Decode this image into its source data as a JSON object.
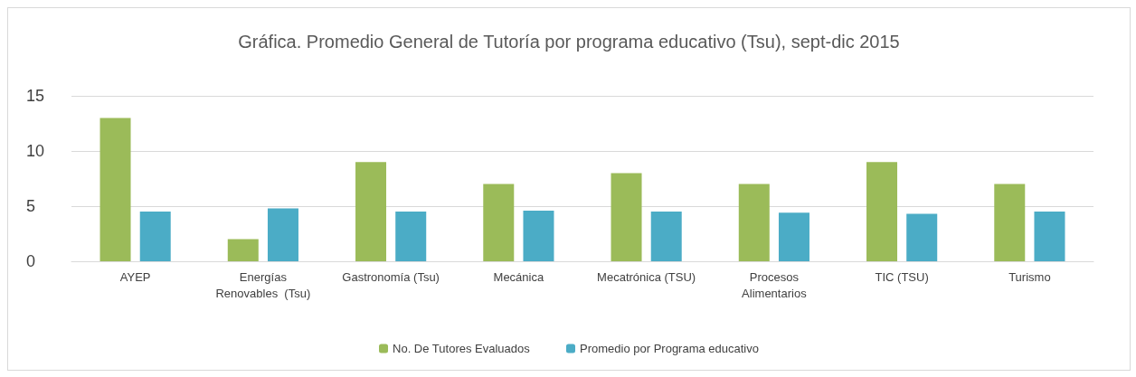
{
  "chart_data": {
    "type": "bar",
    "title": "Gráfica. Promedio General de Tutoría por programa educativo (Tsu), sept-dic 2015",
    "categories": [
      "AYEP",
      "Energías\nRenovables  (Tsu)",
      "Gastronomía (Tsu)",
      "Mecánica",
      "Mecatrónica (TSU)",
      "Procesos\nAlimentarios",
      "TIC (TSU)",
      "Turismo"
    ],
    "series": [
      {
        "name": "No. De Tutores Evaluados",
        "color": "#9bbb59",
        "values": [
          13,
          2,
          9,
          7,
          8,
          7,
          9,
          7
        ]
      },
      {
        "name": "Promedio por Programa educativo",
        "color": "#4bacc6",
        "values": [
          4.5,
          4.8,
          4.5,
          4.6,
          4.5,
          4.4,
          4.3,
          4.5
        ]
      }
    ],
    "ylim": [
      0,
      15
    ],
    "yticks": [
      0,
      5,
      10,
      15
    ],
    "grid": "y",
    "legend": "bottom"
  }
}
